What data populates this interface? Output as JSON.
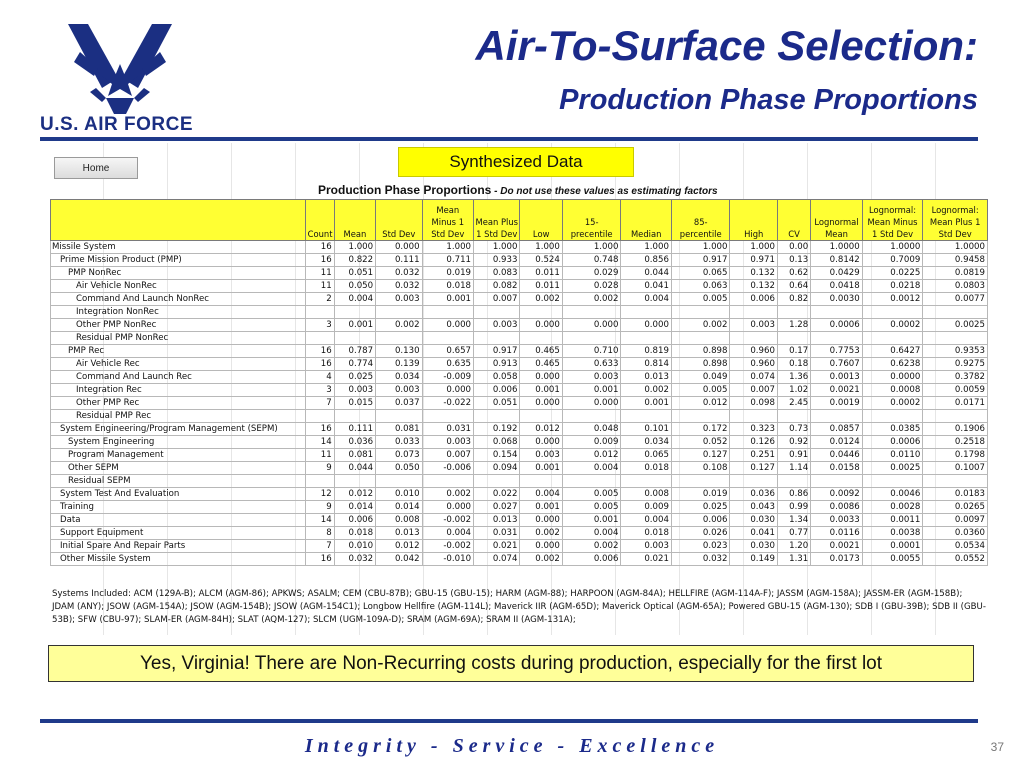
{
  "logo": {
    "text": "U.S. AIR FORCE",
    "primary_color": "#1b2f82"
  },
  "title": "Air-To-Surface Selection:",
  "subtitle": "Production Phase Proportions",
  "sheet": {
    "home_button": "Home",
    "synth_label": "Synthesized Data",
    "table_title": "Production Phase Proportions",
    "table_note": " - Do not use these values as estimating factors",
    "columns": {
      "count": "Count",
      "mean": "Mean",
      "std": "Std Dev",
      "mminus": "Mean Minus 1 Std Dev",
      "mplus": "Mean Plus 1 Std Dev",
      "low": "Low",
      "p15": "15- precentile",
      "median": "Median",
      "p85": "85- percentile",
      "high": "High",
      "cv": "CV",
      "lnmean": "Lognormal Mean",
      "lnminus": "Lognormal: Mean Minus 1 Std Dev",
      "lnplus": "Lognormal: Mean Plus 1 Std Dev"
    },
    "rows": [
      {
        "name": "Missile System",
        "level": 0,
        "v": [
          "16",
          "1.000",
          "0.000",
          "1.000",
          "1.000",
          "1.000",
          "1.000",
          "1.000",
          "1.000",
          "1.000",
          "0.00",
          "1.0000",
          "1.0000",
          "1.0000"
        ]
      },
      {
        "name": "Prime Mission Product (PMP)",
        "level": 1,
        "v": [
          "16",
          "0.822",
          "0.111",
          "0.711",
          "0.933",
          "0.524",
          "0.748",
          "0.856",
          "0.917",
          "0.971",
          "0.13",
          "0.8142",
          "0.7009",
          "0.9458"
        ]
      },
      {
        "name": "PMP NonRec",
        "level": 2,
        "v": [
          "11",
          "0.051",
          "0.032",
          "0.019",
          "0.083",
          "0.011",
          "0.029",
          "0.044",
          "0.065",
          "0.132",
          "0.62",
          "0.0429",
          "0.0225",
          "0.0819"
        ]
      },
      {
        "name": "Air Vehicle NonRec",
        "level": 3,
        "v": [
          "11",
          "0.050",
          "0.032",
          "0.018",
          "0.082",
          "0.011",
          "0.028",
          "0.041",
          "0.063",
          "0.132",
          "0.64",
          "0.0418",
          "0.0218",
          "0.0803"
        ]
      },
      {
        "name": "Command And Launch NonRec",
        "level": 3,
        "v": [
          "2",
          "0.004",
          "0.003",
          "0.001",
          "0.007",
          "0.002",
          "0.002",
          "0.004",
          "0.005",
          "0.006",
          "0.82",
          "0.0030",
          "0.0012",
          "0.0077"
        ]
      },
      {
        "name": "Integration NonRec",
        "level": 3,
        "v": [
          "",
          "",
          "",
          "",
          "",
          "",
          "",
          "",
          "",
          "",
          "",
          "",
          "",
          ""
        ]
      },
      {
        "name": "Other PMP NonRec",
        "level": 3,
        "v": [
          "3",
          "0.001",
          "0.002",
          "0.000",
          "0.003",
          "0.000",
          "0.000",
          "0.000",
          "0.002",
          "0.003",
          "1.28",
          "0.0006",
          "0.0002",
          "0.0025"
        ]
      },
      {
        "name": "Residual PMP NonRec",
        "level": 3,
        "v": [
          "",
          "",
          "",
          "",
          "",
          "",
          "",
          "",
          "",
          "",
          "",
          "",
          "",
          ""
        ]
      },
      {
        "name": "PMP Rec",
        "level": 2,
        "v": [
          "16",
          "0.787",
          "0.130",
          "0.657",
          "0.917",
          "0.465",
          "0.710",
          "0.819",
          "0.898",
          "0.960",
          "0.17",
          "0.7753",
          "0.6427",
          "0.9353"
        ]
      },
      {
        "name": "Air Vehicle Rec",
        "level": 3,
        "v": [
          "16",
          "0.774",
          "0.139",
          "0.635",
          "0.913",
          "0.465",
          "0.633",
          "0.814",
          "0.898",
          "0.960",
          "0.18",
          "0.7607",
          "0.6238",
          "0.9275"
        ]
      },
      {
        "name": "Command And Launch Rec",
        "level": 3,
        "v": [
          "4",
          "0.025",
          "0.034",
          "-0.009",
          "0.058",
          "0.000",
          "0.003",
          "0.013",
          "0.049",
          "0.074",
          "1.36",
          "0.0013",
          "0.0000",
          "0.3782"
        ]
      },
      {
        "name": "Integration Rec",
        "level": 3,
        "v": [
          "3",
          "0.003",
          "0.003",
          "0.000",
          "0.006",
          "0.001",
          "0.001",
          "0.002",
          "0.005",
          "0.007",
          "1.02",
          "0.0021",
          "0.0008",
          "0.0059"
        ]
      },
      {
        "name": "Other PMP Rec",
        "level": 3,
        "v": [
          "7",
          "0.015",
          "0.037",
          "-0.022",
          "0.051",
          "0.000",
          "0.000",
          "0.001",
          "0.012",
          "0.098",
          "2.45",
          "0.0019",
          "0.0002",
          "0.0171"
        ]
      },
      {
        "name": "Residual PMP Rec",
        "level": 3,
        "v": [
          "",
          "",
          "",
          "",
          "",
          "",
          "",
          "",
          "",
          "",
          "",
          "",
          "",
          ""
        ]
      },
      {
        "name": "System Engineering/Program Management (SEPM)",
        "level": 1,
        "v": [
          "16",
          "0.111",
          "0.081",
          "0.031",
          "0.192",
          "0.012",
          "0.048",
          "0.101",
          "0.172",
          "0.323",
          "0.73",
          "0.0857",
          "0.0385",
          "0.1906"
        ]
      },
      {
        "name": "System Engineering",
        "level": 2,
        "v": [
          "14",
          "0.036",
          "0.033",
          "0.003",
          "0.068",
          "0.000",
          "0.009",
          "0.034",
          "0.052",
          "0.126",
          "0.92",
          "0.0124",
          "0.0006",
          "0.2518"
        ]
      },
      {
        "name": "Program Management",
        "level": 2,
        "v": [
          "11",
          "0.081",
          "0.073",
          "0.007",
          "0.154",
          "0.003",
          "0.012",
          "0.065",
          "0.127",
          "0.251",
          "0.91",
          "0.0446",
          "0.0110",
          "0.1798"
        ]
      },
      {
        "name": "Other SEPM",
        "level": 2,
        "v": [
          "9",
          "0.044",
          "0.050",
          "-0.006",
          "0.094",
          "0.001",
          "0.004",
          "0.018",
          "0.108",
          "0.127",
          "1.14",
          "0.0158",
          "0.0025",
          "0.1007"
        ]
      },
      {
        "name": "Residual SEPM",
        "level": 2,
        "v": [
          "",
          "",
          "",
          "",
          "",
          "",
          "",
          "",
          "",
          "",
          "",
          "",
          "",
          ""
        ]
      },
      {
        "name": "System Test And Evaluation",
        "level": 1,
        "v": [
          "12",
          "0.012",
          "0.010",
          "0.002",
          "0.022",
          "0.004",
          "0.005",
          "0.008",
          "0.019",
          "0.036",
          "0.86",
          "0.0092",
          "0.0046",
          "0.0183"
        ]
      },
      {
        "name": "Training",
        "level": 1,
        "v": [
          "9",
          "0.014",
          "0.014",
          "0.000",
          "0.027",
          "0.001",
          "0.005",
          "0.009",
          "0.025",
          "0.043",
          "0.99",
          "0.0086",
          "0.0028",
          "0.0265"
        ]
      },
      {
        "name": "Data",
        "level": 1,
        "v": [
          "14",
          "0.006",
          "0.008",
          "-0.002",
          "0.013",
          "0.000",
          "0.001",
          "0.004",
          "0.006",
          "0.030",
          "1.34",
          "0.0033",
          "0.0011",
          "0.0097"
        ]
      },
      {
        "name": "Support Equipment",
        "level": 1,
        "v": [
          "8",
          "0.018",
          "0.013",
          "0.004",
          "0.031",
          "0.002",
          "0.004",
          "0.018",
          "0.026",
          "0.041",
          "0.77",
          "0.0116",
          "0.0038",
          "0.0360"
        ]
      },
      {
        "name": "Initial Spare And Repair Parts",
        "level": 1,
        "v": [
          "7",
          "0.010",
          "0.012",
          "-0.002",
          "0.021",
          "0.000",
          "0.002",
          "0.003",
          "0.023",
          "0.030",
          "1.20",
          "0.0021",
          "0.0001",
          "0.0534"
        ]
      },
      {
        "name": "Other Missile System",
        "level": 1,
        "v": [
          "16",
          "0.032",
          "0.042",
          "-0.010",
          "0.074",
          "0.002",
          "0.006",
          "0.021",
          "0.032",
          "0.149",
          "1.31",
          "0.0173",
          "0.0055",
          "0.0552"
        ]
      }
    ],
    "systems_text": "Systems Included: ACM (129A-B); ALCM (AGM-86); APKWS; ASALM; CEM (CBU-87B); GBU-15 (GBU-15); HARM (AGM-88); HARPOON (AGM-84A); HELLFIRE (AGM-114A-F); JASSM (AGM-158A); JASSM-ER (AGM-158B); JDAM (ANY); JSOW (AGM-154A); JSOW (AGM-154B); JSOW (AGM-154C1); Longbow Hellfire (AGM-114L); Maverick IIR (AGM-65D); Maverick Optical (AGM-65A); Powered GBU-15 (AGM-130); SDB I (GBU-39B); SDB II (GBU-53B); SFW (CBU-97); SLAM-ER (AGM-84H); SLAT (AQM-127); SLCM (UGM-109A-D); SRAM (AGM-69A); SRAM II (AGM-131A);"
  },
  "callout": "Yes, Virginia!  There are Non-Recurring costs during production, especially for the first lot",
  "footer": "Integrity - Service - Excellence",
  "page_number": "37"
}
